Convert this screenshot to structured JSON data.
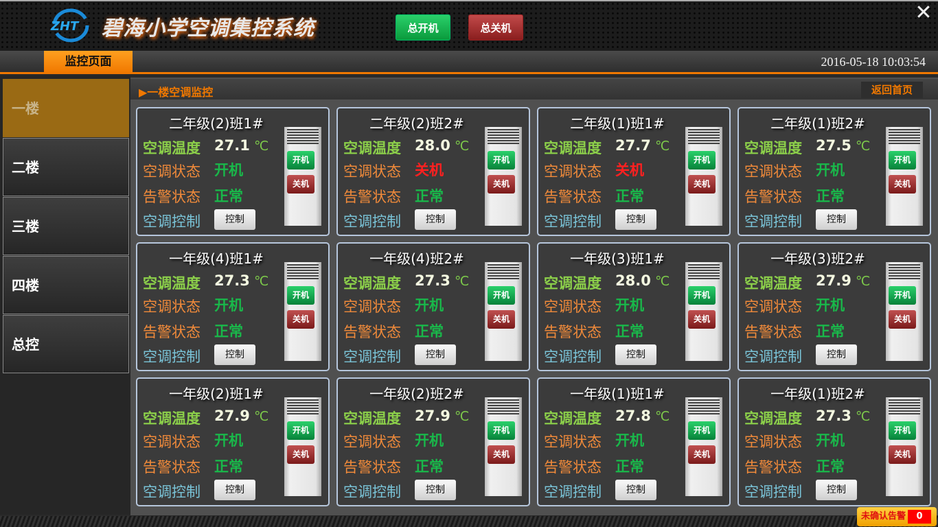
{
  "header": {
    "title": "碧海小学空调集控系统",
    "logo_text": "ZHT",
    "all_on": "总开机",
    "all_off": "总关机",
    "close_icon": "close-x-icon"
  },
  "tabbar": {
    "tab": "监控页面",
    "datetime": "2016-05-18 10:03:54"
  },
  "sidebar": {
    "items": [
      {
        "label": "一楼",
        "active": true
      },
      {
        "label": "二楼"
      },
      {
        "label": "三楼"
      },
      {
        "label": "四楼"
      },
      {
        "label": "总控"
      }
    ]
  },
  "section": {
    "title": "▶一楼空调监控",
    "home": "返回首页"
  },
  "labels": {
    "temp": "空调温度",
    "state": "空调状态",
    "alarm": "告警状态",
    "control": "空调控制",
    "unit": "℃",
    "control_btn": "控制",
    "on_btn": "开机",
    "off_btn": "关机"
  },
  "colors": {
    "accent": "#f07800",
    "on": "#19b84a",
    "off": "#ff2020"
  },
  "units": [
    {
      "name": "二年级(2)班1#",
      "temp": "27.1",
      "state": "开机",
      "alarm": "正常"
    },
    {
      "name": "二年级(2)班2#",
      "temp": "28.0",
      "state": "关机",
      "alarm": "正常"
    },
    {
      "name": "二年级(1)班1#",
      "temp": "27.7",
      "state": "关机",
      "alarm": "正常"
    },
    {
      "name": "二年级(1)班2#",
      "temp": "27.5",
      "state": "开机",
      "alarm": "正常"
    },
    {
      "name": "一年级(4)班1#",
      "temp": "27.3",
      "state": "开机",
      "alarm": "正常"
    },
    {
      "name": "一年级(4)班2#",
      "temp": "27.3",
      "state": "开机",
      "alarm": "正常"
    },
    {
      "name": "一年级(3)班1#",
      "temp": "28.0",
      "state": "开机",
      "alarm": "正常"
    },
    {
      "name": "一年级(3)班2#",
      "temp": "27.9",
      "state": "开机",
      "alarm": "正常"
    },
    {
      "name": "一年级(2)班1#",
      "temp": "27.9",
      "state": "开机",
      "alarm": "正常"
    },
    {
      "name": "一年级(2)班2#",
      "temp": "27.9",
      "state": "开机",
      "alarm": "正常"
    },
    {
      "name": "一年级(1)班1#",
      "temp": "27.8",
      "state": "开机",
      "alarm": "正常"
    },
    {
      "name": "一年级(1)班2#",
      "temp": "27.3",
      "state": "开机",
      "alarm": "正常"
    }
  ],
  "alarm": {
    "label": "未确认告警",
    "count": "0"
  }
}
